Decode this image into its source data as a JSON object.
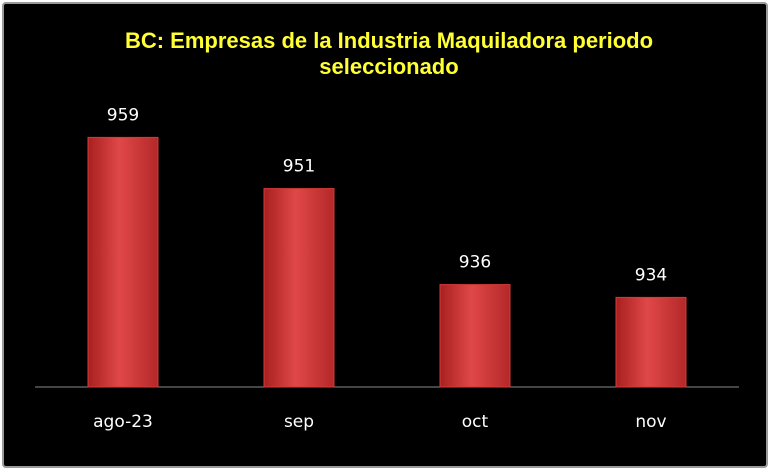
{
  "chart_data": {
    "type": "bar",
    "title": "BC: Empresas de la Industria Maquiladora periodo seleccionado",
    "categories": [
      "ago-23",
      "sep",
      "oct",
      "nov"
    ],
    "values": [
      959,
      951,
      936,
      934
    ],
    "color": "#d63a3a",
    "ylim": [
      920,
      965
    ],
    "grid": false
  }
}
